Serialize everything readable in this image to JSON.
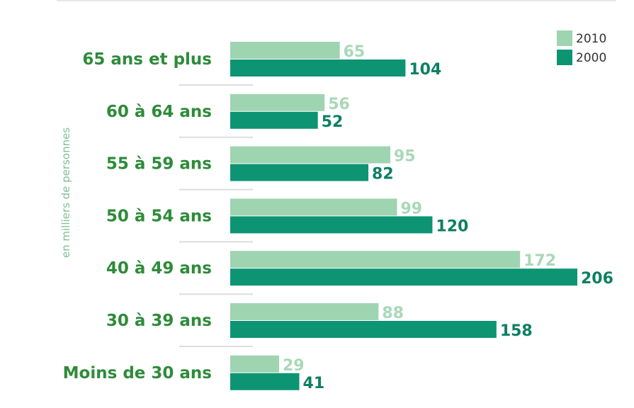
{
  "chart_data": {
    "type": "bar",
    "orientation": "horizontal",
    "ylabel": "en milliers de personnes",
    "categories": [
      "65 ans et plus",
      "60 à 64 ans",
      "55 à 59 ans",
      "50 à 54 ans",
      "40 à 49 ans",
      "30 à 39 ans",
      "Moins de 30 ans"
    ],
    "series": [
      {
        "name": "2010",
        "color": "#9fd4b1",
        "values": [
          65,
          56,
          95,
          99,
          172,
          88,
          29
        ]
      },
      {
        "name": "2000",
        "color": "#0d9473",
        "values": [
          104,
          52,
          82,
          120,
          206,
          158,
          41
        ]
      }
    ],
    "xlim": [
      0,
      206
    ],
    "legend_position": "top-right",
    "grid": false
  }
}
